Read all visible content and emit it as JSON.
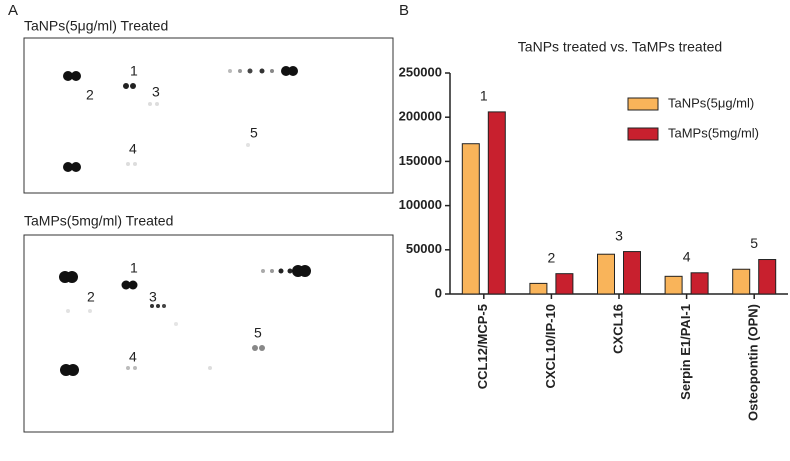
{
  "panel_labels": [
    "A",
    "B"
  ],
  "blots": [
    {
      "title": "TaNPs(5μg/ml) Treated",
      "labels": [
        "1",
        "2",
        "3",
        "4",
        "5"
      ]
    },
    {
      "title": "TaMPs(5mg/ml) Treated",
      "labels": [
        "1",
        "2",
        "3",
        "4",
        "5"
      ]
    }
  ],
  "chart_data": {
    "type": "bar",
    "title": "TaNPs treated vs. TaMPs treated",
    "categories": [
      "CCL12/MCP-5",
      "CXCL10/IP-10",
      "CXCL16",
      "Serpin E1/PAI-1",
      "Osteopontin (OPN)"
    ],
    "annotations": [
      "1",
      "2",
      "3",
      "4",
      "5"
    ],
    "series": [
      {
        "name": "TaNPs(5μg/ml)",
        "color": "#f9b45a",
        "values": [
          170000,
          12000,
          45000,
          20000,
          28000
        ]
      },
      {
        "name": "TaMPs(5mg/ml)",
        "color": "#c8202e",
        "values": [
          206000,
          23000,
          48000,
          24000,
          39000
        ]
      }
    ],
    "ylim": [
      0,
      250000
    ],
    "yticks": [
      0,
      50000,
      100000,
      150000,
      200000,
      250000
    ],
    "grid": false,
    "legend": "upper-right"
  }
}
